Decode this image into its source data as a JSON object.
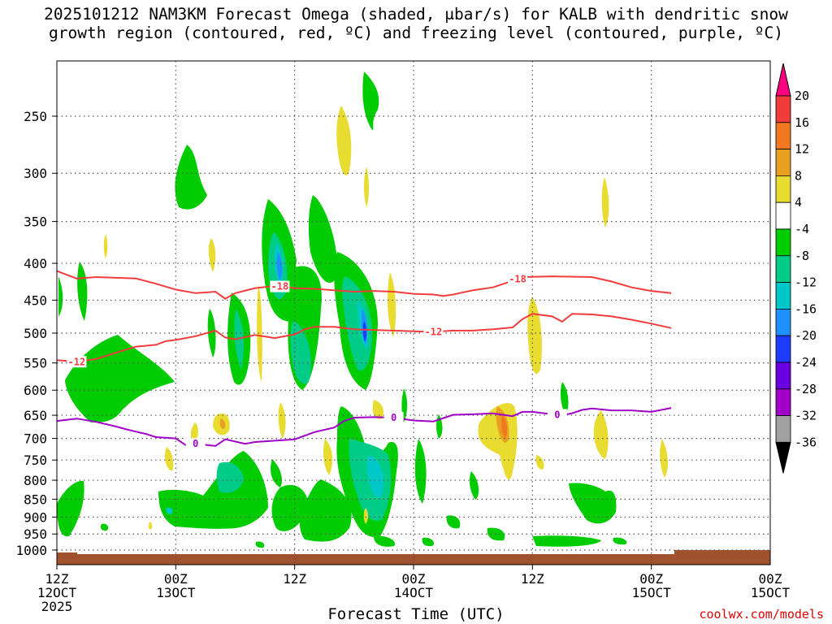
{
  "title": {
    "line1": "2025101212 NAM3KM Forecast Omega (shaded, μbar/s) for KALB with dendritic snow",
    "line2": "growth region (contoured, red, ºC) and freezing level (contoured, purple, ºC)"
  },
  "xlabel": "Forecast Time (UTC)",
  "credit": "coolwx.com/models",
  "chart_data": {
    "type": "time-height cross section",
    "y_axis": {
      "label": "",
      "units": "hPa",
      "ticks": [
        250,
        300,
        350,
        400,
        450,
        500,
        550,
        600,
        650,
        700,
        750,
        800,
        850,
        900,
        950,
        1000
      ],
      "range": [
        1000,
        195
      ],
      "scale": "log-pressure"
    },
    "x_axis": {
      "label": "Forecast Time (UTC)",
      "range_hours": [
        0,
        72
      ],
      "ticks": [
        {
          "h": 0,
          "line1": "12Z",
          "line2": "12OCT",
          "line3": "2025"
        },
        {
          "h": 12,
          "line1": "00Z",
          "line2": "13OCT",
          "line3": ""
        },
        {
          "h": 24,
          "line1": "12Z",
          "line2": "",
          "line3": ""
        },
        {
          "h": 36,
          "line1": "00Z",
          "line2": "14OCT",
          "line3": ""
        },
        {
          "h": 48,
          "line1": "12Z",
          "line2": "",
          "line3": ""
        },
        {
          "h": 60,
          "line1": "00Z",
          "line2": "15OCT",
          "line3": ""
        }
      ]
    },
    "colorbar": {
      "units": "μbar/s",
      "labels": [
        20,
        16,
        12,
        8,
        4,
        -4,
        -8,
        -12,
        -16,
        -20,
        -24,
        -28,
        -32,
        -36
      ],
      "colors": [
        "#ff0080",
        "#f03c3c",
        "#f07820",
        "#e8a020",
        "#e8dc30",
        "#ffffff",
        "#00cc00",
        "#00cc88",
        "#00c8c8",
        "#1e90ff",
        "#1e3cff",
        "#6a00e0",
        "#a000c8",
        "#a0a0a0",
        "#000000"
      ]
    },
    "contours": [
      {
        "name": "-18",
        "color": "#f03c3c",
        "label_at_h": [
          22.5,
          46.5
        ],
        "points": [
          [
            0,
            410
          ],
          [
            2,
            420
          ],
          [
            4,
            418
          ],
          [
            6,
            419
          ],
          [
            8,
            420
          ],
          [
            10,
            427
          ],
          [
            12,
            435
          ],
          [
            14,
            440
          ],
          [
            16,
            438
          ],
          [
            17,
            448
          ],
          [
            18,
            440
          ],
          [
            20,
            433
          ],
          [
            22,
            430
          ],
          [
            24,
            433
          ],
          [
            26,
            434
          ],
          [
            28,
            436
          ],
          [
            30,
            438
          ],
          [
            32,
            437
          ],
          [
            34,
            438
          ],
          [
            36,
            441
          ],
          [
            38,
            442
          ],
          [
            39,
            444
          ],
          [
            40,
            442
          ],
          [
            42,
            436
          ],
          [
            44,
            432
          ],
          [
            46,
            423
          ],
          [
            47,
            418
          ],
          [
            50,
            417
          ],
          [
            54,
            418
          ],
          [
            56,
            424
          ],
          [
            58,
            432
          ],
          [
            60,
            437
          ],
          [
            62,
            440
          ]
        ]
      },
      {
        "name": "-12",
        "color": "#f03c3c",
        "label_at_h": [
          2,
          38
        ],
        "points": [
          [
            0,
            545
          ],
          [
            2,
            548
          ],
          [
            4,
            543
          ],
          [
            6,
            532
          ],
          [
            8,
            522
          ],
          [
            10,
            519
          ],
          [
            11,
            513
          ],
          [
            12,
            511
          ],
          [
            14,
            505
          ],
          [
            16,
            496
          ],
          [
            17,
            507
          ],
          [
            18,
            510
          ],
          [
            20,
            503
          ],
          [
            22,
            508
          ],
          [
            24,
            502
          ],
          [
            25,
            494
          ],
          [
            26,
            490
          ],
          [
            28,
            490
          ],
          [
            30,
            494
          ],
          [
            32,
            495
          ],
          [
            34,
            496
          ],
          [
            36,
            497
          ],
          [
            38,
            498
          ],
          [
            40,
            496
          ],
          [
            42,
            496
          ],
          [
            44,
            494
          ],
          [
            46,
            491
          ],
          [
            47,
            478
          ],
          [
            48,
            470
          ],
          [
            50,
            474
          ],
          [
            51,
            482
          ],
          [
            52,
            470
          ],
          [
            54,
            471
          ],
          [
            56,
            474
          ],
          [
            58,
            479
          ],
          [
            60,
            485
          ],
          [
            62,
            492
          ]
        ]
      },
      {
        "name": "0",
        "color": "#a000c8",
        "label_at_h": [
          14,
          34,
          50.5
        ],
        "points": [
          [
            0,
            662
          ],
          [
            2,
            657
          ],
          [
            4,
            664
          ],
          [
            6,
            674
          ],
          [
            7,
            680
          ],
          [
            8,
            685
          ],
          [
            9,
            690
          ],
          [
            10,
            697
          ],
          [
            12,
            700
          ],
          [
            13,
            715
          ],
          [
            14,
            712
          ],
          [
            16,
            717
          ],
          [
            17,
            702
          ],
          [
            19,
            712
          ],
          [
            20,
            708
          ],
          [
            22,
            705
          ],
          [
            24,
            702
          ],
          [
            26,
            686
          ],
          [
            28,
            676
          ],
          [
            29,
            662
          ],
          [
            30,
            655
          ],
          [
            32,
            654
          ],
          [
            34,
            655
          ],
          [
            36,
            661
          ],
          [
            38,
            663
          ],
          [
            40,
            649
          ],
          [
            42,
            648
          ],
          [
            44,
            646
          ],
          [
            46,
            652
          ],
          [
            47,
            643
          ],
          [
            48,
            643
          ],
          [
            50,
            648
          ],
          [
            51,
            650
          ],
          [
            52,
            646
          ],
          [
            53,
            639
          ],
          [
            54,
            636
          ],
          [
            56,
            640
          ],
          [
            58,
            640
          ],
          [
            60,
            643
          ],
          [
            62,
            635
          ]
        ]
      }
    ]
  }
}
